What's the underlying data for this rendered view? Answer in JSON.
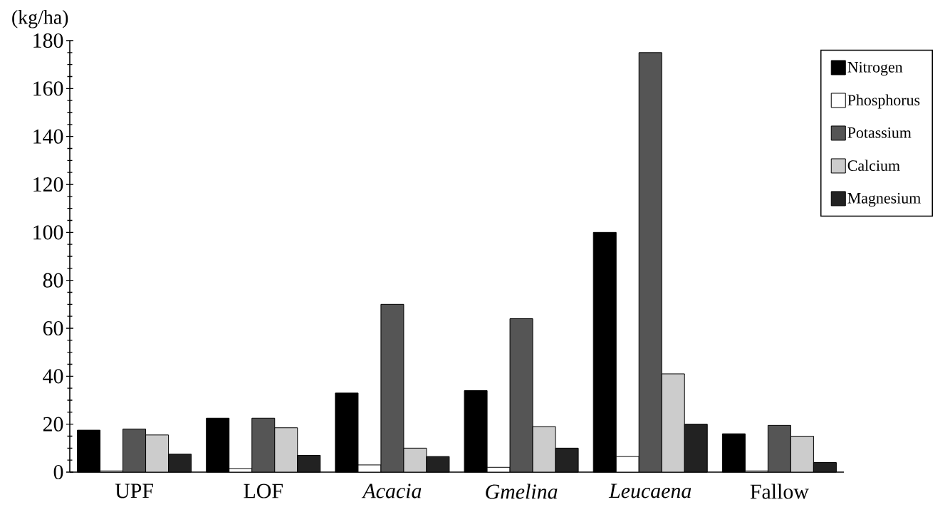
{
  "chart_data": {
    "type": "bar",
    "ylabel": "(kg/ha)",
    "categories": [
      "UPF",
      "LOF",
      "*Acacia*",
      "*Gmelina*",
      "*Leucaena*",
      "Fallow"
    ],
    "series": [
      {
        "name": "Nitrogen",
        "color": "#000000",
        "values": [
          17.5,
          22.5,
          33,
          34,
          100,
          16
        ]
      },
      {
        "name": "Phosphorus",
        "color": "#ffffff",
        "values": [
          0.5,
          1.5,
          3,
          2,
          6.5,
          0.5
        ]
      },
      {
        "name": "Potassium",
        "color": "#555555",
        "values": [
          18,
          22.5,
          70,
          64,
          175,
          19.5
        ]
      },
      {
        "name": "Calcium",
        "color": "#cccccc",
        "values": [
          15.5,
          18.5,
          10,
          19,
          41,
          15
        ]
      },
      {
        "name": "Magnesium",
        "color": "#222222",
        "values": [
          7.5,
          7,
          6.5,
          10,
          20,
          4
        ]
      }
    ],
    "ylim": [
      0,
      180
    ],
    "yticks": [
      0,
      20,
      40,
      60,
      80,
      100,
      120,
      140,
      160,
      180
    ],
    "legend": "top right"
  }
}
